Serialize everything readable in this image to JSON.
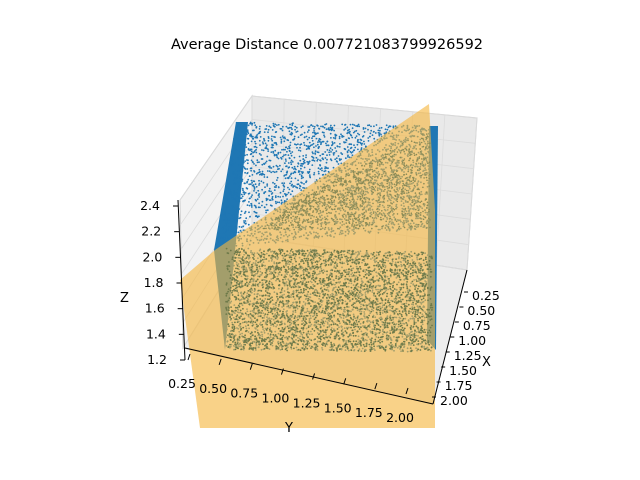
{
  "chart_data": {
    "type": "scatter",
    "projection": "3d",
    "title": "Average Distance 0.007721083799926592",
    "xlabel": "X",
    "ylabel": "Y",
    "zlabel": "Z",
    "x_ticks": [
      "0.25",
      "0.50",
      "0.75",
      "1.00",
      "1.25",
      "1.50",
      "1.75",
      "2.00"
    ],
    "y_ticks": [
      "0.25",
      "0.50",
      "0.75",
      "1.00",
      "1.25",
      "1.50",
      "1.75",
      "2.00"
    ],
    "z_ticks": [
      "1.2",
      "1.4",
      "1.6",
      "1.8",
      "2.0",
      "2.2",
      "2.4"
    ],
    "xlim": [
      0.1,
      2.1
    ],
    "ylim": [
      0.1,
      2.1
    ],
    "zlim": [
      1.15,
      2.5
    ],
    "grid": true,
    "series": [
      {
        "kind": "scatter",
        "color": "#1f77b4",
        "description_points": "uniform random points on the box faces",
        "box": {
          "x": [
            0.2,
            2.0
          ],
          "y": [
            0.2,
            2.0
          ],
          "z": [
            1.2,
            2.4
          ]
        }
      },
      {
        "kind": "fitted-plane",
        "color": "#f5b63f",
        "alpha": 0.65
      }
    ]
  }
}
